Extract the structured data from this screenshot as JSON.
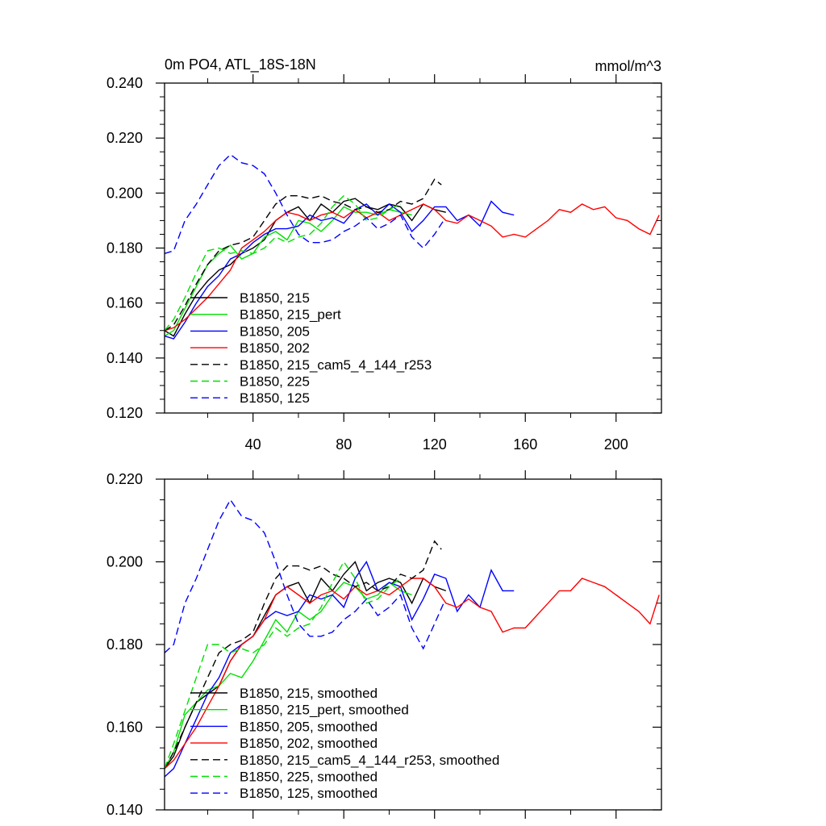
{
  "chart_data": [
    {
      "type": "line",
      "title": "0m PO4, ATL_18S-18N",
      "units": "mmol/m^3",
      "xlim": [
        1,
        220
      ],
      "ylim": [
        0.12,
        0.24
      ],
      "xticks": [
        40,
        80,
        120,
        160,
        200
      ],
      "xtick_labels": [
        "40",
        "80",
        "120",
        "160",
        "200"
      ],
      "yticks": [
        0.12,
        0.14,
        0.16,
        0.18,
        0.2,
        0.22,
        0.24
      ],
      "ytick_labels": [
        "0.120",
        "0.140",
        "0.160",
        "0.180",
        "0.200",
        "0.220",
        "0.240"
      ],
      "legend_position": "bottom-left",
      "series": [
        {
          "name": "B1850, 215",
          "color": "#000000",
          "dash": "solid",
          "x": [
            1,
            5,
            10,
            15,
            20,
            25,
            30,
            35,
            40,
            45,
            50,
            55,
            60,
            65,
            70,
            75,
            80,
            85,
            90,
            95,
            100,
            105,
            110,
            115,
            120,
            125
          ],
          "y": [
            0.15,
            0.148,
            0.156,
            0.163,
            0.168,
            0.172,
            0.174,
            0.178,
            0.18,
            0.183,
            0.19,
            0.193,
            0.195,
            0.19,
            0.196,
            0.193,
            0.197,
            0.198,
            0.195,
            0.194,
            0.196,
            0.195,
            0.19,
            0.196,
            0.194,
            0.193
          ]
        },
        {
          "name": "B1850, 215_pert",
          "color": "#00e000",
          "dash": "solid",
          "x": [
            1,
            5,
            10,
            15,
            20,
            25,
            30,
            35,
            40,
            45,
            50,
            55,
            60,
            65,
            70,
            75,
            80,
            85,
            90,
            95,
            100,
            105,
            110
          ],
          "y": [
            0.148,
            0.15,
            0.158,
            0.166,
            0.174,
            0.178,
            0.181,
            0.176,
            0.178,
            0.184,
            0.186,
            0.183,
            0.19,
            0.189,
            0.186,
            0.19,
            0.195,
            0.193,
            0.193,
            0.192,
            0.194,
            0.193,
            0.192
          ]
        },
        {
          "name": "B1850, 205",
          "color": "#0000ff",
          "dash": "solid",
          "x": [
            1,
            5,
            10,
            15,
            20,
            25,
            30,
            35,
            40,
            45,
            50,
            55,
            60,
            65,
            70,
            75,
            80,
            85,
            90,
            95,
            100,
            105,
            110,
            115,
            120,
            125,
            130,
            135,
            140,
            145,
            150,
            155
          ],
          "y": [
            0.148,
            0.147,
            0.153,
            0.16,
            0.166,
            0.17,
            0.176,
            0.178,
            0.182,
            0.185,
            0.187,
            0.187,
            0.188,
            0.192,
            0.19,
            0.191,
            0.189,
            0.194,
            0.196,
            0.192,
            0.196,
            0.193,
            0.186,
            0.19,
            0.195,
            0.195,
            0.19,
            0.192,
            0.188,
            0.197,
            0.193,
            0.192
          ]
        },
        {
          "name": "B1850, 202",
          "color": "#ff0000",
          "dash": "solid",
          "x": [
            1,
            5,
            10,
            15,
            20,
            25,
            30,
            35,
            40,
            45,
            50,
            55,
            60,
            65,
            70,
            75,
            80,
            85,
            90,
            95,
            100,
            105,
            110,
            115,
            120,
            125,
            130,
            135,
            140,
            145,
            150,
            155,
            160,
            165,
            170,
            175,
            180,
            185,
            190,
            195,
            200,
            205,
            210,
            215,
            219
          ],
          "y": [
            0.15,
            0.151,
            0.154,
            0.158,
            0.162,
            0.167,
            0.172,
            0.18,
            0.183,
            0.186,
            0.19,
            0.193,
            0.192,
            0.19,
            0.192,
            0.193,
            0.191,
            0.194,
            0.191,
            0.193,
            0.19,
            0.192,
            0.194,
            0.196,
            0.194,
            0.19,
            0.189,
            0.192,
            0.19,
            0.188,
            0.184,
            0.185,
            0.184,
            0.187,
            0.19,
            0.194,
            0.193,
            0.196,
            0.194,
            0.195,
            0.191,
            0.19,
            0.187,
            0.185,
            0.192
          ]
        },
        {
          "name": "B1850, 215_cam5_4_144_r253",
          "color": "#000000",
          "dash": "dash",
          "x": [
            1,
            5,
            10,
            15,
            20,
            25,
            30,
            35,
            40,
            45,
            50,
            55,
            60,
            65,
            70,
            75,
            80,
            85,
            90,
            95,
            100,
            105,
            110,
            115,
            120,
            123
          ],
          "y": [
            0.15,
            0.152,
            0.159,
            0.167,
            0.174,
            0.179,
            0.181,
            0.182,
            0.184,
            0.19,
            0.196,
            0.199,
            0.199,
            0.198,
            0.199,
            0.197,
            0.196,
            0.194,
            0.195,
            0.193,
            0.194,
            0.197,
            0.196,
            0.198,
            0.205,
            0.203
          ]
        },
        {
          "name": "B1850, 225",
          "color": "#00e000",
          "dash": "dash",
          "x": [
            1,
            5,
            10,
            15,
            20,
            25,
            30,
            35,
            40,
            45,
            50,
            55,
            60,
            65,
            70,
            75,
            80,
            85,
            90,
            95,
            100,
            105
          ],
          "y": [
            0.15,
            0.154,
            0.162,
            0.171,
            0.179,
            0.18,
            0.178,
            0.179,
            0.178,
            0.18,
            0.184,
            0.182,
            0.184,
            0.185,
            0.189,
            0.195,
            0.199,
            0.196,
            0.19,
            0.191,
            0.194,
            0.196
          ]
        },
        {
          "name": "B1850, 125",
          "color": "#0000ff",
          "dash": "dash",
          "x": [
            1,
            5,
            10,
            15,
            20,
            25,
            30,
            35,
            40,
            45,
            50,
            55,
            60,
            65,
            70,
            75,
            80,
            85,
            90,
            95,
            100,
            105,
            110,
            115,
            120,
            124
          ],
          "y": [
            0.178,
            0.179,
            0.19,
            0.196,
            0.203,
            0.21,
            0.214,
            0.211,
            0.21,
            0.207,
            0.2,
            0.192,
            0.185,
            0.182,
            0.182,
            0.183,
            0.186,
            0.188,
            0.191,
            0.187,
            0.189,
            0.192,
            0.184,
            0.18,
            0.185,
            0.19
          ]
        }
      ]
    },
    {
      "type": "line",
      "title": "",
      "xlim": [
        1,
        220
      ],
      "ylim": [
        0.14,
        0.22
      ],
      "xticks": [
        40,
        80,
        120,
        160,
        200
      ],
      "xtick_labels": [],
      "yticks": [
        0.14,
        0.16,
        0.18,
        0.2,
        0.22
      ],
      "ytick_labels": [
        "0.140",
        "0.160",
        "0.180",
        "0.200",
        "0.220"
      ],
      "legend_position": "bottom-left",
      "series": [
        {
          "name": "B1850, 215, smoothed",
          "color": "#000000",
          "dash": "solid",
          "x": [
            1,
            5,
            10,
            15,
            20,
            25,
            30,
            35,
            40,
            45,
            50,
            55,
            60,
            65,
            70,
            75,
            80,
            85,
            90,
            95,
            100,
            105,
            110,
            115,
            120,
            125
          ],
          "y": [
            0.15,
            0.153,
            0.16,
            0.166,
            0.168,
            0.17,
            0.176,
            0.18,
            0.182,
            0.187,
            0.192,
            0.194,
            0.195,
            0.19,
            0.196,
            0.193,
            0.197,
            0.2,
            0.193,
            0.195,
            0.196,
            0.195,
            0.19,
            0.196,
            0.194,
            0.193
          ]
        },
        {
          "name": "B1850, 215_pert, smoothed",
          "color": "#00e000",
          "dash": "solid",
          "x": [
            1,
            5,
            10,
            15,
            20,
            25,
            30,
            35,
            40,
            45,
            50,
            55,
            60,
            65,
            70,
            75,
            80,
            85,
            90,
            95,
            100,
            105,
            110
          ],
          "y": [
            0.15,
            0.154,
            0.163,
            0.166,
            0.169,
            0.17,
            0.173,
            0.172,
            0.176,
            0.181,
            0.186,
            0.183,
            0.188,
            0.186,
            0.188,
            0.192,
            0.195,
            0.194,
            0.191,
            0.192,
            0.195,
            0.193,
            0.192
          ]
        },
        {
          "name": "B1850, 205, smoothed",
          "color": "#0000ff",
          "dash": "solid",
          "x": [
            1,
            5,
            10,
            15,
            20,
            25,
            30,
            35,
            40,
            45,
            50,
            55,
            60,
            65,
            70,
            75,
            80,
            85,
            90,
            95,
            100,
            105,
            110,
            115,
            120,
            125,
            130,
            135,
            140,
            145,
            150,
            155
          ],
          "y": [
            0.148,
            0.15,
            0.156,
            0.162,
            0.168,
            0.172,
            0.178,
            0.18,
            0.182,
            0.186,
            0.188,
            0.187,
            0.188,
            0.192,
            0.191,
            0.192,
            0.189,
            0.196,
            0.2,
            0.193,
            0.195,
            0.194,
            0.186,
            0.191,
            0.197,
            0.196,
            0.188,
            0.192,
            0.189,
            0.198,
            0.193,
            0.193
          ]
        },
        {
          "name": "B1850, 202, smoothed",
          "color": "#ff0000",
          "dash": "solid",
          "x": [
            1,
            5,
            10,
            15,
            20,
            25,
            30,
            35,
            40,
            45,
            50,
            55,
            60,
            65,
            70,
            75,
            80,
            85,
            90,
            95,
            100,
            105,
            110,
            115,
            120,
            125,
            130,
            135,
            140,
            145,
            150,
            155,
            160,
            165,
            170,
            175,
            180,
            185,
            190,
            195,
            200,
            205,
            210,
            215,
            219
          ],
          "y": [
            0.15,
            0.152,
            0.156,
            0.16,
            0.165,
            0.17,
            0.176,
            0.18,
            0.182,
            0.186,
            0.192,
            0.194,
            0.192,
            0.19,
            0.192,
            0.193,
            0.191,
            0.194,
            0.192,
            0.193,
            0.192,
            0.194,
            0.196,
            0.196,
            0.194,
            0.19,
            0.189,
            0.191,
            0.189,
            0.188,
            0.183,
            0.184,
            0.184,
            0.187,
            0.19,
            0.193,
            0.193,
            0.196,
            0.195,
            0.194,
            0.192,
            0.19,
            0.188,
            0.185,
            0.192
          ]
        },
        {
          "name": "B1850, 215_cam5_4_144_r253, smoothed",
          "color": "#000000",
          "dash": "dash",
          "x": [
            1,
            5,
            10,
            15,
            20,
            25,
            30,
            35,
            40,
            45,
            50,
            55,
            60,
            65,
            70,
            75,
            80,
            85,
            90,
            95,
            100,
            105,
            110,
            115,
            120,
            123
          ],
          "y": [
            0.15,
            0.154,
            0.16,
            0.166,
            0.172,
            0.178,
            0.18,
            0.181,
            0.183,
            0.19,
            0.196,
            0.199,
            0.199,
            0.198,
            0.199,
            0.197,
            0.196,
            0.194,
            0.195,
            0.193,
            0.194,
            0.197,
            0.196,
            0.198,
            0.205,
            0.203
          ]
        },
        {
          "name": "B1850, 225, smoothed",
          "color": "#00e000",
          "dash": "dash",
          "x": [
            1,
            5,
            10,
            15,
            20,
            25,
            30,
            35,
            40,
            45,
            50,
            55,
            60,
            65,
            70,
            75,
            80,
            85,
            90,
            95,
            100,
            105
          ],
          "y": [
            0.15,
            0.156,
            0.164,
            0.172,
            0.18,
            0.18,
            0.178,
            0.179,
            0.178,
            0.18,
            0.184,
            0.182,
            0.184,
            0.185,
            0.189,
            0.195,
            0.2,
            0.196,
            0.19,
            0.191,
            0.194,
            0.196
          ]
        },
        {
          "name": "B1850, 125, smoothed",
          "color": "#0000ff",
          "dash": "dash",
          "x": [
            1,
            5,
            10,
            15,
            20,
            25,
            30,
            35,
            40,
            45,
            50,
            55,
            60,
            65,
            70,
            75,
            80,
            85,
            90,
            95,
            100,
            105,
            110,
            115,
            120,
            124
          ],
          "y": [
            0.178,
            0.18,
            0.19,
            0.196,
            0.203,
            0.21,
            0.215,
            0.211,
            0.21,
            0.207,
            0.2,
            0.192,
            0.185,
            0.182,
            0.182,
            0.183,
            0.186,
            0.188,
            0.191,
            0.187,
            0.189,
            0.192,
            0.184,
            0.179,
            0.185,
            0.19
          ]
        }
      ]
    }
  ]
}
